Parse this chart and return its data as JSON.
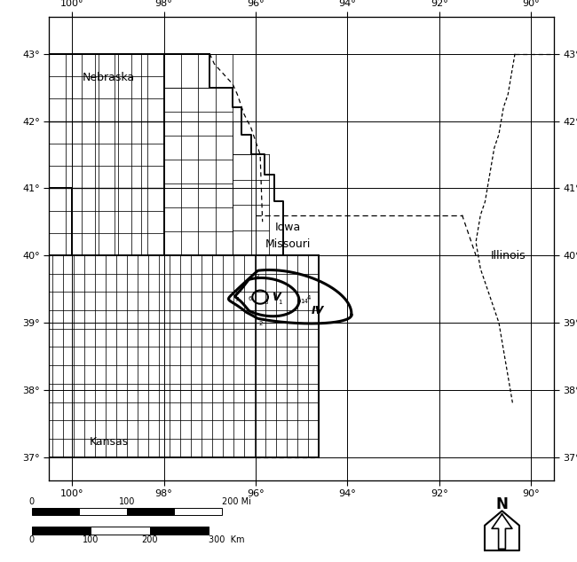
{
  "lon_min": -100.5,
  "lon_max": -89.5,
  "lat_min": 36.65,
  "lat_max": 43.55,
  "lon_ticks": [
    -100,
    -98,
    -96,
    -94,
    -92,
    -90
  ],
  "lat_ticks": [
    37,
    38,
    39,
    40,
    41,
    42,
    43
  ],
  "lon_labels": [
    "100°",
    "98°",
    "96°",
    "94°",
    "92°",
    "90°"
  ],
  "lat_labels": [
    "37°",
    "38°",
    "39°",
    "40°",
    "41°",
    "42°",
    "43°"
  ],
  "state_labels": [
    {
      "text": "Nebraska",
      "lon": -99.2,
      "lat": 42.65,
      "fontsize": 9
    },
    {
      "text": "Kansas",
      "lon": -99.2,
      "lat": 37.22,
      "fontsize": 9
    },
    {
      "text": "Iowa",
      "lon": -95.3,
      "lat": 40.42,
      "fontsize": 9
    },
    {
      "text": "Missouri",
      "lon": -95.3,
      "lat": 40.17,
      "fontsize": 9
    },
    {
      "text": "Illinois",
      "lon": -90.5,
      "lat": 40.0,
      "fontsize": 9
    }
  ],
  "background_color": "#ffffff",
  "figsize": [
    6.5,
    6.34
  ],
  "dpi": 100
}
